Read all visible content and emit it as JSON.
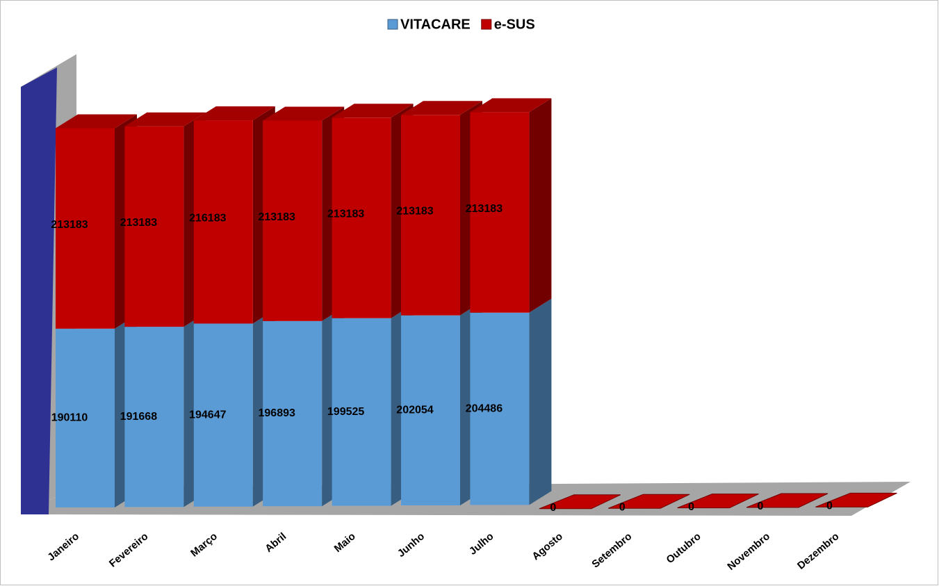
{
  "chart_data": {
    "type": "bar3d_stacked",
    "categories": [
      "Janeiro",
      "Fevereiro",
      "Março",
      "Abril",
      "Maio",
      "Junho",
      "Julho",
      "Agosto",
      "Setembro",
      "Outubro",
      "Novembro",
      "Dezembro"
    ],
    "series": [
      {
        "name": "VITACARE",
        "color": "#5b9bd5",
        "values": [
          190110,
          191668,
          194647,
          196893,
          199525,
          202054,
          204486,
          null,
          null,
          null,
          null,
          null
        ]
      },
      {
        "name": "e-SUS",
        "color": "#c00000",
        "values": [
          213183,
          213183,
          216183,
          213183,
          213183,
          213183,
          213183,
          0,
          0,
          0,
          0,
          0
        ]
      }
    ],
    "legend": "top"
  }
}
